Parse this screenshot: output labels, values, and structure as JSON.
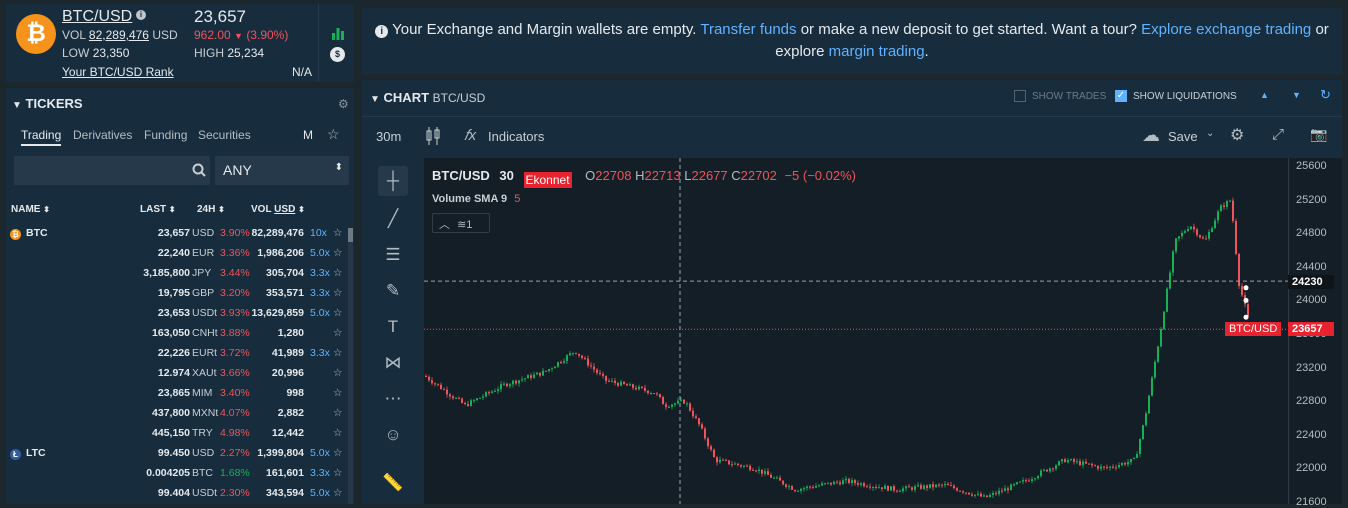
{
  "ticker": {
    "symbol": "BTC/USD",
    "price": "23,657",
    "vol_label": "VOL",
    "vol_value": "82,289,476",
    "vol_ccy": "USD",
    "change": "962.00",
    "change_pct": "(3.90%)",
    "low_label": "LOW",
    "low_value": "23,350",
    "high_label": "HIGH",
    "high_value": "25,234",
    "rank_link": "Your BTC/USD Rank",
    "rank_value": "N/A",
    "coin_glyph": "₿"
  },
  "notice": {
    "text1": "Your Exchange and Margin wallets are empty.",
    "link1": "Transfer funds",
    "text2": "or make a new deposit to get started. Want a tour?",
    "link2": "Explore exchange trading",
    "text3": "or",
    "text4": "explore",
    "link3": "margin trading",
    "text5": "."
  },
  "tickers": {
    "title": "TICKERS",
    "tabs": [
      "Trading",
      "Derivatives",
      "Funding",
      "Securities"
    ],
    "m_label": "M",
    "select_value": "ANY",
    "columns": {
      "name": "NAME",
      "last": "LAST",
      "h24": "24H",
      "vol": "VOL",
      "vol_ccy": "USD"
    },
    "rows": [
      {
        "sym": "BTC",
        "last": "23,657",
        "ccy": "USD",
        "chg": "3.90%",
        "chg_dir": "down",
        "vol": "82,289,476",
        "lev": "10x"
      },
      {
        "sym": "",
        "last": "22,240",
        "ccy": "EUR",
        "chg": "3.36%",
        "chg_dir": "down",
        "vol": "1,986,206",
        "lev": "5.0x"
      },
      {
        "sym": "",
        "last": "3,185,800",
        "ccy": "JPY",
        "chg": "3.44%",
        "chg_dir": "down",
        "vol": "305,704",
        "lev": "3.3x"
      },
      {
        "sym": "",
        "last": "19,795",
        "ccy": "GBP",
        "chg": "3.20%",
        "chg_dir": "down",
        "vol": "353,571",
        "lev": "3.3x"
      },
      {
        "sym": "",
        "last": "23,653",
        "ccy": "USDt",
        "chg": "3.93%",
        "chg_dir": "down",
        "vol": "13,629,859",
        "lev": "5.0x"
      },
      {
        "sym": "",
        "last": "163,050",
        "ccy": "CNHt",
        "chg": "3.88%",
        "chg_dir": "down",
        "vol": "1,280",
        "lev": ""
      },
      {
        "sym": "",
        "last": "22,226",
        "ccy": "EURt",
        "chg": "3.72%",
        "chg_dir": "down",
        "vol": "41,989",
        "lev": "3.3x"
      },
      {
        "sym": "",
        "last": "12.974",
        "ccy": "XAUt",
        "chg": "3.66%",
        "chg_dir": "down",
        "vol": "20,996",
        "lev": ""
      },
      {
        "sym": "",
        "last": "23,865",
        "ccy": "MIM",
        "chg": "3.40%",
        "chg_dir": "down",
        "vol": "998",
        "lev": ""
      },
      {
        "sym": "",
        "last": "437,800",
        "ccy": "MXNt",
        "chg": "4.07%",
        "chg_dir": "down",
        "vol": "2,882",
        "lev": ""
      },
      {
        "sym": "",
        "last": "445,150",
        "ccy": "TRY",
        "chg": "4.98%",
        "chg_dir": "down",
        "vol": "12,442",
        "lev": ""
      },
      {
        "sym": "LTC",
        "last": "99.450",
        "ccy": "USD",
        "chg": "2.27%",
        "chg_dir": "down",
        "vol": "1,399,804",
        "lev": "5.0x"
      },
      {
        "sym": "",
        "last": "0.004205",
        "ccy": "BTC",
        "chg": "1.68%",
        "chg_dir": "up",
        "vol": "161,601",
        "lev": "3.3x"
      },
      {
        "sym": "",
        "last": "99.404",
        "ccy": "USDt",
        "chg": "2.30%",
        "chg_dir": "down",
        "vol": "343,594",
        "lev": "5.0x"
      }
    ]
  },
  "chart": {
    "title": "CHART",
    "pair": "BTC/USD",
    "show_trades": "SHOW TRADES",
    "show_liq": "SHOW LIQUIDATIONS",
    "interval": "30m",
    "indicators": "Indicators",
    "save": "Save",
    "legend_pair": "BTC/USD",
    "legend_interval": "30",
    "exchange_tag": "Ekonnet",
    "o_label": "O",
    "o_val": "22708",
    "h_label": "H",
    "h_val": "22713",
    "l_label": "L",
    "l_val": "22677",
    "c_label": "C",
    "c_val": "22702",
    "chg_val": "−5 (−0.02%)",
    "volume_label": "Volume SMA 9",
    "volume_val": "5",
    "layers_count": "1",
    "price_tag_pair": "BTC/USD",
    "price_tag_val": "23657",
    "crosshair_val": "24230",
    "y_ticks": [
      "25600",
      "25200",
      "24800",
      "24400",
      "24000",
      "23600",
      "23200",
      "22800",
      "22400",
      "22000",
      "21600"
    ],
    "colors": {
      "up": "#16b157",
      "down": "#f05359"
    }
  }
}
